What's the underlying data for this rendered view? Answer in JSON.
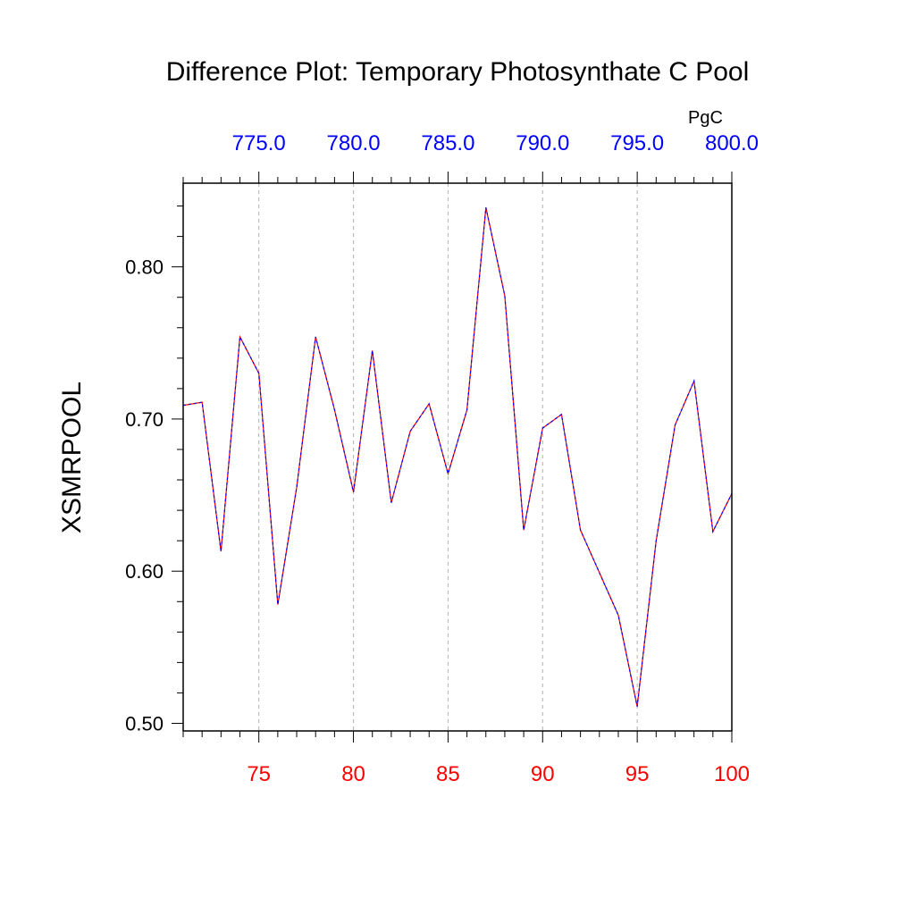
{
  "chart_data": {
    "type": "line",
    "title": "Difference Plot: Temporary Photosynthate C Pool",
    "ylabel": "XSMRPOOL",
    "top_axis_unit": "PgC",
    "x": [
      71,
      72,
      73,
      74,
      75,
      76,
      77,
      78,
      79,
      80,
      81,
      82,
      83,
      84,
      85,
      86,
      87,
      88,
      89,
      90,
      91,
      92,
      93,
      94,
      95,
      96,
      97,
      98,
      99,
      100
    ],
    "series": [
      {
        "color": "#0000ff",
        "dash": "dashed",
        "values": [
          0.709,
          0.711,
          0.613,
          0.754,
          0.73,
          0.578,
          0.655,
          0.754,
          0.706,
          0.652,
          0.745,
          0.645,
          0.692,
          0.71,
          0.664,
          0.706,
          0.839,
          0.781,
          0.627,
          0.694,
          0.703,
          0.627,
          0.599,
          0.571,
          0.511,
          0.62,
          0.696,
          0.725,
          0.626,
          0.651
        ]
      },
      {
        "color": "#ff0000",
        "dash": "solid",
        "values": [
          0.709,
          0.711,
          0.613,
          0.754,
          0.73,
          0.578,
          0.655,
          0.754,
          0.706,
          0.652,
          0.745,
          0.645,
          0.692,
          0.71,
          0.664,
          0.706,
          0.839,
          0.781,
          0.627,
          0.694,
          0.703,
          0.627,
          0.599,
          0.571,
          0.511,
          0.62,
          0.696,
          0.725,
          0.626,
          0.651
        ]
      }
    ],
    "xlim": [
      71,
      100
    ],
    "ylim": [
      0.495,
      0.855
    ],
    "x_ticks": [
      "75",
      "80",
      "85",
      "90",
      "95",
      "100"
    ],
    "x_tick_values": [
      75,
      80,
      85,
      90,
      95,
      100
    ],
    "y_ticks": [
      "0.50",
      "0.60",
      "0.70",
      "0.80"
    ],
    "y_tick_values": [
      0.5,
      0.6,
      0.7,
      0.8
    ],
    "top_ticks": [
      "775.0",
      "780.0",
      "785.0",
      "790.0",
      "795.0",
      "800.0"
    ],
    "bottom_tick_color": "#ff0000",
    "top_tick_color": "#0000ff",
    "grid": "vertical dashed at major x ticks"
  }
}
